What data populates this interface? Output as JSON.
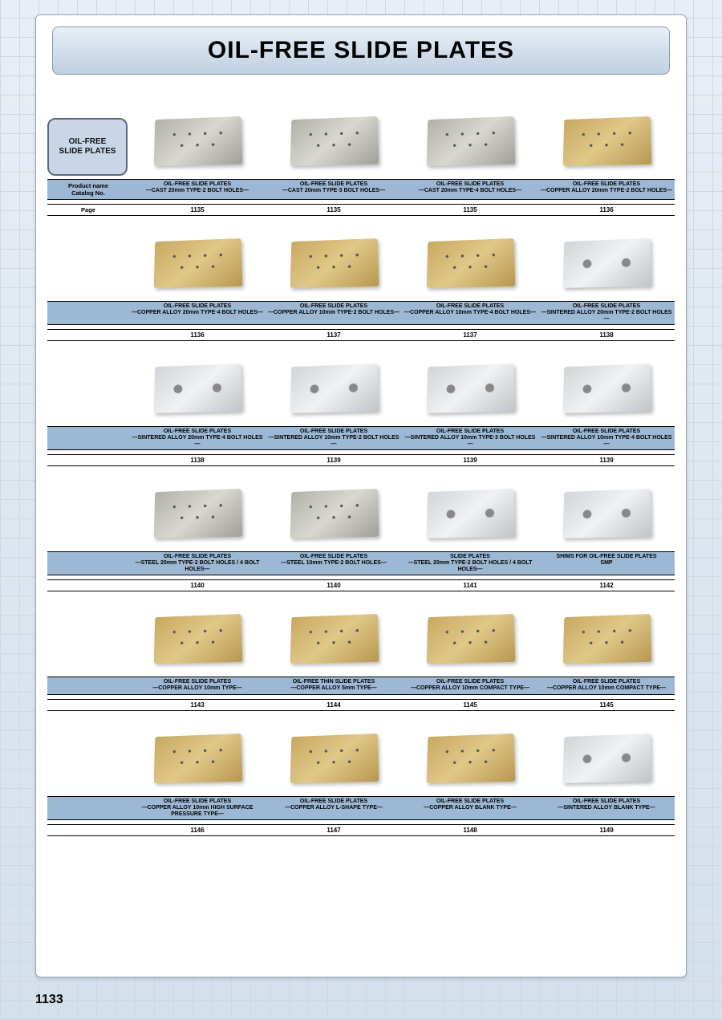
{
  "page_title": "OIL-FREE SLIDE PLATES",
  "category_box": "OIL-FREE\nSLIDE PLATES",
  "header_labels": {
    "product_name": "Product name\nCatalog  No.",
    "page": "Page"
  },
  "page_number": "1133",
  "colors": {
    "band_bg": "#9db8d4",
    "title_bg_top": "#e8eff6",
    "title_bg_bottom": "#c0d0e0"
  },
  "rows": [
    {
      "show_left": true,
      "items": [
        {
          "title": "OIL-FREE SLIDE PLATES",
          "sub": "—CAST 20mm TYPE·2 BOLT HOLES—",
          "page": "1135",
          "style": "gray"
        },
        {
          "title": "OIL-FREE SLIDE PLATES",
          "sub": "—CAST 20mm TYPE·3 BOLT HOLES—",
          "page": "1135",
          "style": "gray"
        },
        {
          "title": "OIL-FREE SLIDE PLATES",
          "sub": "—CAST 20mm TYPE·4 BOLT HOLES—",
          "page": "1135",
          "style": "gray"
        },
        {
          "title": "OIL-FREE SLIDE PLATES",
          "sub": "—COPPER ALLOY 20mm TYPE·2 BOLT HOLES—",
          "page": "1136",
          "style": "bronze"
        }
      ]
    },
    {
      "show_left": false,
      "items": [
        {
          "title": "OIL-FREE SLIDE PLATES",
          "sub": "—COPPER ALLOY 20mm TYPE·4 BOLT HOLES—",
          "page": "1136",
          "style": "bronze"
        },
        {
          "title": "OIL-FREE SLIDE PLATES",
          "sub": "—COPPER ALLOY 10mm TYPE·2 BOLT HOLES—",
          "page": "1137",
          "style": "bronze"
        },
        {
          "title": "OIL-FREE SLIDE PLATES",
          "sub": "—COPPER ALLOY 10mm TYPE·4 BOLT HOLES—",
          "page": "1137",
          "style": "bronze"
        },
        {
          "title": "OIL-FREE SLIDE PLATES",
          "sub": "—SINTERED ALLOY 20mm TYPE·2 BOLT HOLES—",
          "page": "1138",
          "style": "silver"
        }
      ]
    },
    {
      "show_left": false,
      "items": [
        {
          "title": "OIL-FREE SLIDE PLATES",
          "sub": "—SINTERED ALLOY 20mm TYPE·4 BOLT HOLES—",
          "page": "1138",
          "style": "silver"
        },
        {
          "title": "OIL-FREE SLIDE PLATES",
          "sub": "—SINTERED ALLOY 10mm TYPE·2 BOLT HOLES—",
          "page": "1139",
          "style": "silver"
        },
        {
          "title": "OIL-FREE SLIDE PLATES",
          "sub": "—SINTERED ALLOY 10mm TYPE·3 BOLT HOLES—",
          "page": "1139",
          "style": "silver"
        },
        {
          "title": "OIL-FREE SLIDE PLATES",
          "sub": "—SINTERED ALLOY 10mm TYPE·4 BOLT HOLES—",
          "page": "1139",
          "style": "silver"
        }
      ]
    },
    {
      "show_left": false,
      "items": [
        {
          "title": "OIL-FREE SLIDE PLATES",
          "sub": "—STEEL 20mm TYPE·2 BOLT HOLES / 4 BOLT HOLES—",
          "page": "1140",
          "style": "gray"
        },
        {
          "title": "OIL-FREE SLIDE PLATES",
          "sub": "—STEEL 10mm TYPE·2 BOLT HOLES—",
          "page": "1140",
          "style": "gray"
        },
        {
          "title": "SLIDE PLATES",
          "sub": "—STEEL 20mm TYPE·2 BOLT HOLES / 4 BOLT HOLES—",
          "page": "1141",
          "style": "silver"
        },
        {
          "title": "SHIMS FOR OIL-FREE SLIDE PLATES",
          "sub": "SMP",
          "page": "1142",
          "style": "silver"
        }
      ]
    },
    {
      "show_left": false,
      "items": [
        {
          "title": "OIL-FREE SLIDE PLATES",
          "sub": "—COPPER ALLOY 10mm TYPE—",
          "page": "1143",
          "style": "bronze"
        },
        {
          "title": "OIL-FREE THIN SLIDE PLATES",
          "sub": "—COPPER ALLOY 5mm TYPE—",
          "page": "1144",
          "style": "bronze"
        },
        {
          "title": "OIL-FREE SLIDE PLATES",
          "sub": "—COPPER ALLOY 10mm COMPACT TYPE—",
          "page": "1145",
          "style": "bronze"
        },
        {
          "title": "OIL-FREE SLIDE PLATES",
          "sub": "—COPPER ALLOY 10mm COMPACT TYPE—",
          "page": "1145",
          "style": "bronze"
        }
      ]
    },
    {
      "show_left": false,
      "items": [
        {
          "title": "OIL-FREE SLIDE PLATES",
          "sub": "—COPPER ALLOY 10mm HIGH SURFACE PRESSURE TYPE—",
          "page": "1146",
          "style": "bronze"
        },
        {
          "title": "OIL-FREE SLIDE PLATES",
          "sub": "—COPPER ALLOY L-SHAPE TYPE—",
          "page": "1147",
          "style": "bronze"
        },
        {
          "title": "OIL-FREE SLIDE PLATES",
          "sub": "—COPPER ALLOY BLANK TYPE—",
          "page": "1148",
          "style": "bronze"
        },
        {
          "title": "OIL-FREE SLIDE PLATES",
          "sub": "—SINTERED ALLOY BLANK TYPE—",
          "page": "1149",
          "style": "silver"
        }
      ]
    }
  ]
}
